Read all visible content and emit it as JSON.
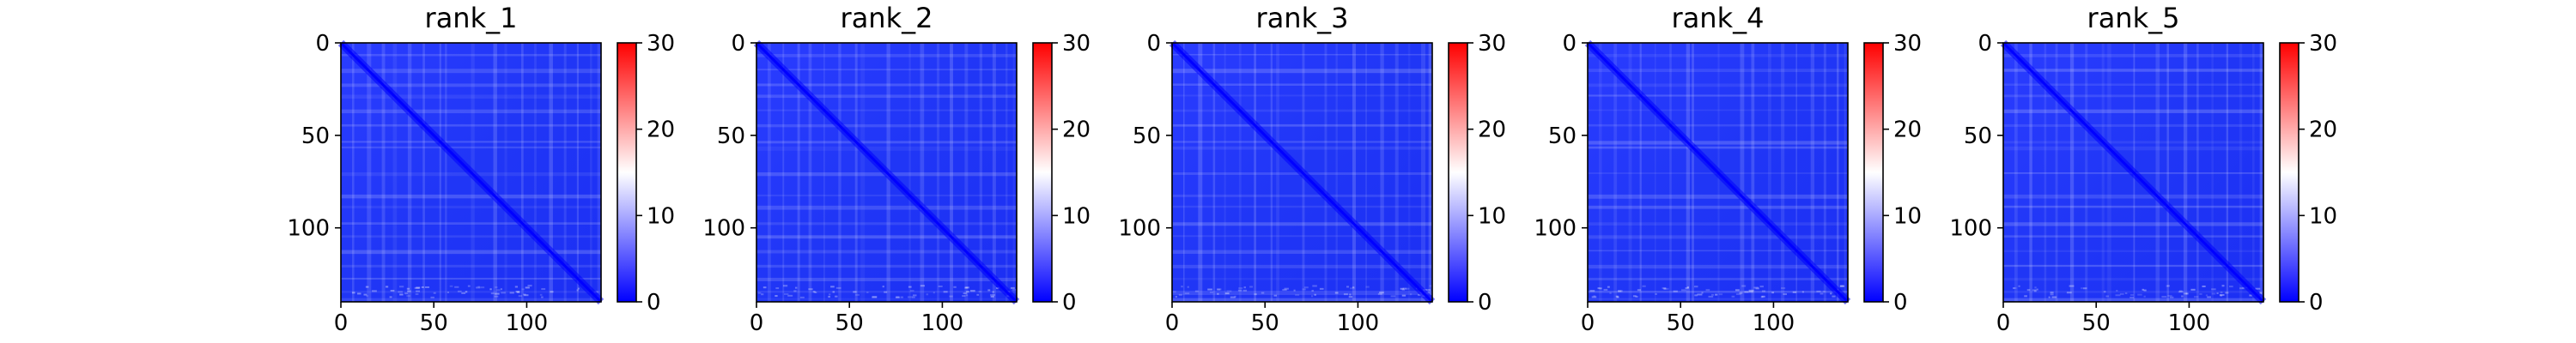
{
  "chart_data": [
    {
      "type": "heatmap",
      "title": "rank_1",
      "x_ticks": [
        "0",
        "50",
        "100"
      ],
      "y_ticks": [
        "0",
        "50",
        "100"
      ],
      "colorbar_ticks": [
        "0",
        "10",
        "20",
        "30"
      ],
      "xlim": [
        0,
        140
      ],
      "ylim": [
        0,
        140
      ],
      "color_range": [
        0,
        30
      ],
      "colormap": "bwr",
      "grid": false
    },
    {
      "type": "heatmap",
      "title": "rank_2",
      "x_ticks": [
        "0",
        "50",
        "100"
      ],
      "y_ticks": [
        "0",
        "50",
        "100"
      ],
      "colorbar_ticks": [
        "0",
        "10",
        "20",
        "30"
      ],
      "xlim": [
        0,
        140
      ],
      "ylim": [
        0,
        140
      ],
      "color_range": [
        0,
        30
      ],
      "colormap": "bwr",
      "grid": false
    },
    {
      "type": "heatmap",
      "title": "rank_3",
      "x_ticks": [
        "0",
        "50",
        "100"
      ],
      "y_ticks": [
        "0",
        "50",
        "100"
      ],
      "colorbar_ticks": [
        "0",
        "10",
        "20",
        "30"
      ],
      "xlim": [
        0,
        140
      ],
      "ylim": [
        0,
        140
      ],
      "color_range": [
        0,
        30
      ],
      "colormap": "bwr",
      "grid": false
    },
    {
      "type": "heatmap",
      "title": "rank_4",
      "x_ticks": [
        "0",
        "50",
        "100"
      ],
      "y_ticks": [
        "0",
        "50",
        "100"
      ],
      "colorbar_ticks": [
        "0",
        "10",
        "20",
        "30"
      ],
      "xlim": [
        0,
        140
      ],
      "ylim": [
        0,
        140
      ],
      "color_range": [
        0,
        30
      ],
      "colormap": "bwr",
      "grid": false
    },
    {
      "type": "heatmap",
      "title": "rank_5",
      "x_ticks": [
        "0",
        "50",
        "100"
      ],
      "y_ticks": [
        "0",
        "50",
        "100"
      ],
      "colorbar_ticks": [
        "0",
        "10",
        "20",
        "30"
      ],
      "xlim": [
        0,
        140
      ],
      "ylim": [
        0,
        140
      ],
      "color_range": [
        0,
        30
      ],
      "colormap": "bwr",
      "grid": false
    }
  ]
}
